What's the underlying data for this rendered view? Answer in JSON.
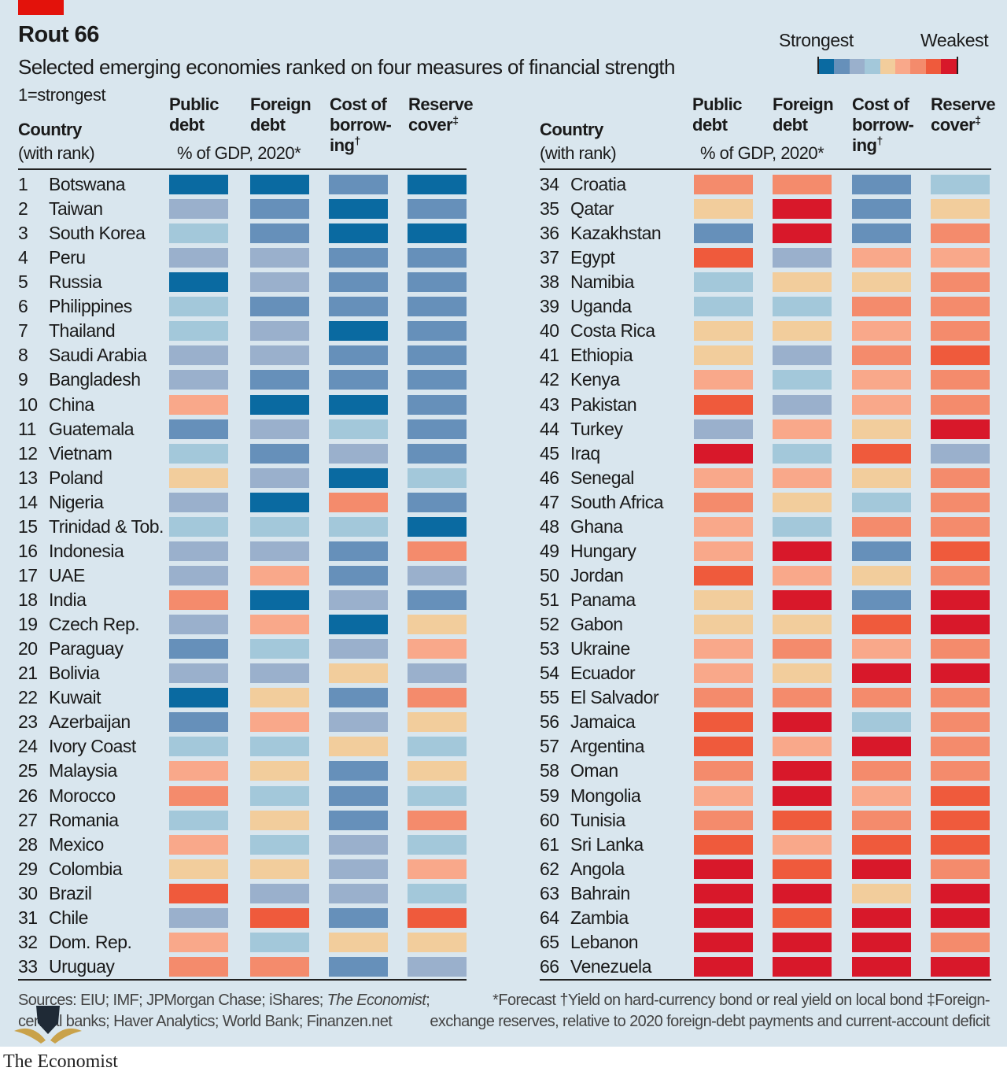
{
  "title": "Rout 66",
  "subtitle": "Selected emerging economies ranked on four measures of financial strength",
  "note": "1=strongest",
  "legend": {
    "strongest_label": "Strongest",
    "weakest_label": "Weakest",
    "scale": [
      "#0a6aa1",
      "#6690ba",
      "#9ab0cc",
      "#a3c8da",
      "#f2cd9c",
      "#f9a88a",
      "#f48b6c",
      "#ef5a3c",
      "#d8182a"
    ]
  },
  "headers": {
    "country": "Country",
    "with_rank": "(with rank)",
    "public_debt": [
      "Public",
      "debt"
    ],
    "foreign_debt": [
      "Foreign",
      "debt"
    ],
    "cost_of_borrowing": [
      "Cost of",
      "borrow-",
      "ing"
    ],
    "cost_mark": "†",
    "reserve_cover": [
      "Reserve",
      "cover"
    ],
    "reserve_mark": "‡",
    "unit": "% of GDP, 2020*"
  },
  "footer": {
    "sources_line1_a": "Sources: EIU; IMF; JPMorgan Chase; iShares; ",
    "sources_line1_b": "The Economist",
    "sources_line1_c": ";",
    "sources_line2": "central banks; Haver Analytics; World Bank; Finanzen.net",
    "notes_line1": "*Forecast   †Yield on hard-currency bond or real yield on local bond   ‡Foreign-",
    "notes_line2": "exchange reserves, relative to 2020 foreign-debt payments and current-account deficit"
  },
  "brand": "The Economist",
  "chart_data": {
    "type": "heatmap",
    "title": "Rout 66",
    "subtitle": "Selected emerging economies ranked on four measures of financial strength",
    "value_scale": "1 = strongest (dark blue) to 9 = weakest (red), 9-step colour bins",
    "columns": [
      "Public debt",
      "Foreign debt",
      "Cost of borrowing",
      "Reserve cover"
    ],
    "rows": [
      {
        "rank": 1,
        "country": "Botswana",
        "values": [
          1,
          1,
          2,
          1
        ]
      },
      {
        "rank": 2,
        "country": "Taiwan",
        "values": [
          3,
          2,
          1,
          2
        ]
      },
      {
        "rank": 3,
        "country": "South Korea",
        "values": [
          4,
          2,
          1,
          1
        ]
      },
      {
        "rank": 4,
        "country": "Peru",
        "values": [
          3,
          3,
          2,
          2
        ]
      },
      {
        "rank": 5,
        "country": "Russia",
        "values": [
          1,
          3,
          2,
          2
        ]
      },
      {
        "rank": 6,
        "country": "Philippines",
        "values": [
          4,
          2,
          2,
          2
        ]
      },
      {
        "rank": 7,
        "country": "Thailand",
        "values": [
          4,
          3,
          1,
          2
        ]
      },
      {
        "rank": 8,
        "country": "Saudi Arabia",
        "values": [
          3,
          3,
          2,
          2
        ]
      },
      {
        "rank": 9,
        "country": "Bangladesh",
        "values": [
          3,
          2,
          2,
          2
        ]
      },
      {
        "rank": 10,
        "country": "China",
        "values": [
          6,
          1,
          1,
          2
        ]
      },
      {
        "rank": 11,
        "country": "Guatemala",
        "values": [
          2,
          3,
          4,
          2
        ]
      },
      {
        "rank": 12,
        "country": "Vietnam",
        "values": [
          4,
          2,
          3,
          2
        ]
      },
      {
        "rank": 13,
        "country": "Poland",
        "values": [
          5,
          3,
          1,
          4
        ]
      },
      {
        "rank": 14,
        "country": "Nigeria",
        "values": [
          3,
          1,
          7,
          2
        ]
      },
      {
        "rank": 15,
        "country": "Trinidad & Tob.",
        "values": [
          4,
          4,
          4,
          1
        ]
      },
      {
        "rank": 16,
        "country": "Indonesia",
        "values": [
          3,
          3,
          2,
          7
        ]
      },
      {
        "rank": 17,
        "country": "UAE",
        "values": [
          3,
          6,
          2,
          3
        ]
      },
      {
        "rank": 18,
        "country": "India",
        "values": [
          7,
          1,
          3,
          2
        ]
      },
      {
        "rank": 19,
        "country": "Czech Rep.",
        "values": [
          3,
          6,
          1,
          5
        ]
      },
      {
        "rank": 20,
        "country": "Paraguay",
        "values": [
          2,
          4,
          3,
          6
        ]
      },
      {
        "rank": 21,
        "country": "Bolivia",
        "values": [
          3,
          3,
          5,
          3
        ]
      },
      {
        "rank": 22,
        "country": "Kuwait",
        "values": [
          1,
          5,
          2,
          7
        ]
      },
      {
        "rank": 23,
        "country": "Azerbaijan",
        "values": [
          2,
          6,
          3,
          5
        ]
      },
      {
        "rank": 24,
        "country": "Ivory Coast",
        "values": [
          4,
          4,
          5,
          4
        ]
      },
      {
        "rank": 25,
        "country": "Malaysia",
        "values": [
          6,
          5,
          2,
          5
        ]
      },
      {
        "rank": 26,
        "country": "Morocco",
        "values": [
          7,
          4,
          2,
          4
        ]
      },
      {
        "rank": 27,
        "country": "Romania",
        "values": [
          4,
          5,
          2,
          7
        ]
      },
      {
        "rank": 28,
        "country": "Mexico",
        "values": [
          6,
          4,
          3,
          4
        ]
      },
      {
        "rank": 29,
        "country": "Colombia",
        "values": [
          5,
          5,
          3,
          6
        ]
      },
      {
        "rank": 30,
        "country": "Brazil",
        "values": [
          8,
          3,
          3,
          4
        ]
      },
      {
        "rank": 31,
        "country": "Chile",
        "values": [
          3,
          8,
          2,
          8
        ]
      },
      {
        "rank": 32,
        "country": "Dom. Rep.",
        "values": [
          6,
          4,
          5,
          5
        ]
      },
      {
        "rank": 33,
        "country": "Uruguay",
        "values": [
          7,
          7,
          2,
          3
        ]
      },
      {
        "rank": 34,
        "country": "Croatia",
        "values": [
          7,
          7,
          2,
          4
        ]
      },
      {
        "rank": 35,
        "country": "Qatar",
        "values": [
          5,
          9,
          2,
          5
        ]
      },
      {
        "rank": 36,
        "country": "Kazakhstan",
        "values": [
          2,
          9,
          2,
          7
        ]
      },
      {
        "rank": 37,
        "country": "Egypt",
        "values": [
          8,
          3,
          6,
          6
        ]
      },
      {
        "rank": 38,
        "country": "Namibia",
        "values": [
          4,
          5,
          5,
          7
        ]
      },
      {
        "rank": 39,
        "country": "Uganda",
        "values": [
          4,
          4,
          7,
          7
        ]
      },
      {
        "rank": 40,
        "country": "Costa Rica",
        "values": [
          5,
          5,
          6,
          7
        ]
      },
      {
        "rank": 41,
        "country": "Ethiopia",
        "values": [
          5,
          3,
          7,
          8
        ]
      },
      {
        "rank": 42,
        "country": "Kenya",
        "values": [
          6,
          4,
          6,
          7
        ]
      },
      {
        "rank": 43,
        "country": "Pakistan",
        "values": [
          8,
          3,
          6,
          7
        ]
      },
      {
        "rank": 44,
        "country": "Turkey",
        "values": [
          3,
          6,
          5,
          9
        ]
      },
      {
        "rank": 45,
        "country": "Iraq",
        "values": [
          9,
          4,
          8,
          3
        ]
      },
      {
        "rank": 46,
        "country": "Senegal",
        "values": [
          6,
          6,
          5,
          7
        ]
      },
      {
        "rank": 47,
        "country": "South Africa",
        "values": [
          7,
          5,
          4,
          7
        ]
      },
      {
        "rank": 48,
        "country": "Ghana",
        "values": [
          6,
          4,
          7,
          7
        ]
      },
      {
        "rank": 49,
        "country": "Hungary",
        "values": [
          6,
          9,
          2,
          8
        ]
      },
      {
        "rank": 50,
        "country": "Jordan",
        "values": [
          8,
          6,
          5,
          7
        ]
      },
      {
        "rank": 51,
        "country": "Panama",
        "values": [
          5,
          9,
          2,
          9
        ]
      },
      {
        "rank": 52,
        "country": "Gabon",
        "values": [
          5,
          5,
          8,
          9
        ]
      },
      {
        "rank": 53,
        "country": "Ukraine",
        "values": [
          6,
          7,
          6,
          7
        ]
      },
      {
        "rank": 54,
        "country": "Ecuador",
        "values": [
          6,
          5,
          9,
          9
        ]
      },
      {
        "rank": 55,
        "country": "El Salvador",
        "values": [
          7,
          7,
          7,
          7
        ]
      },
      {
        "rank": 56,
        "country": "Jamaica",
        "values": [
          8,
          9,
          4,
          7
        ]
      },
      {
        "rank": 57,
        "country": "Argentina",
        "values": [
          8,
          6,
          9,
          7
        ]
      },
      {
        "rank": 58,
        "country": "Oman",
        "values": [
          7,
          9,
          7,
          7
        ]
      },
      {
        "rank": 59,
        "country": "Mongolia",
        "values": [
          6,
          9,
          6,
          8
        ]
      },
      {
        "rank": 60,
        "country": "Tunisia",
        "values": [
          7,
          8,
          7,
          8
        ]
      },
      {
        "rank": 61,
        "country": "Sri Lanka",
        "values": [
          8,
          6,
          8,
          8
        ]
      },
      {
        "rank": 62,
        "country": "Angola",
        "values": [
          9,
          8,
          9,
          7
        ]
      },
      {
        "rank": 63,
        "country": "Bahrain",
        "values": [
          9,
          9,
          5,
          9
        ]
      },
      {
        "rank": 64,
        "country": "Zambia",
        "values": [
          9,
          8,
          9,
          9
        ]
      },
      {
        "rank": 65,
        "country": "Lebanon",
        "values": [
          9,
          9,
          9,
          7
        ]
      },
      {
        "rank": 66,
        "country": "Venezuela",
        "values": [
          9,
          9,
          9,
          9
        ]
      }
    ]
  }
}
